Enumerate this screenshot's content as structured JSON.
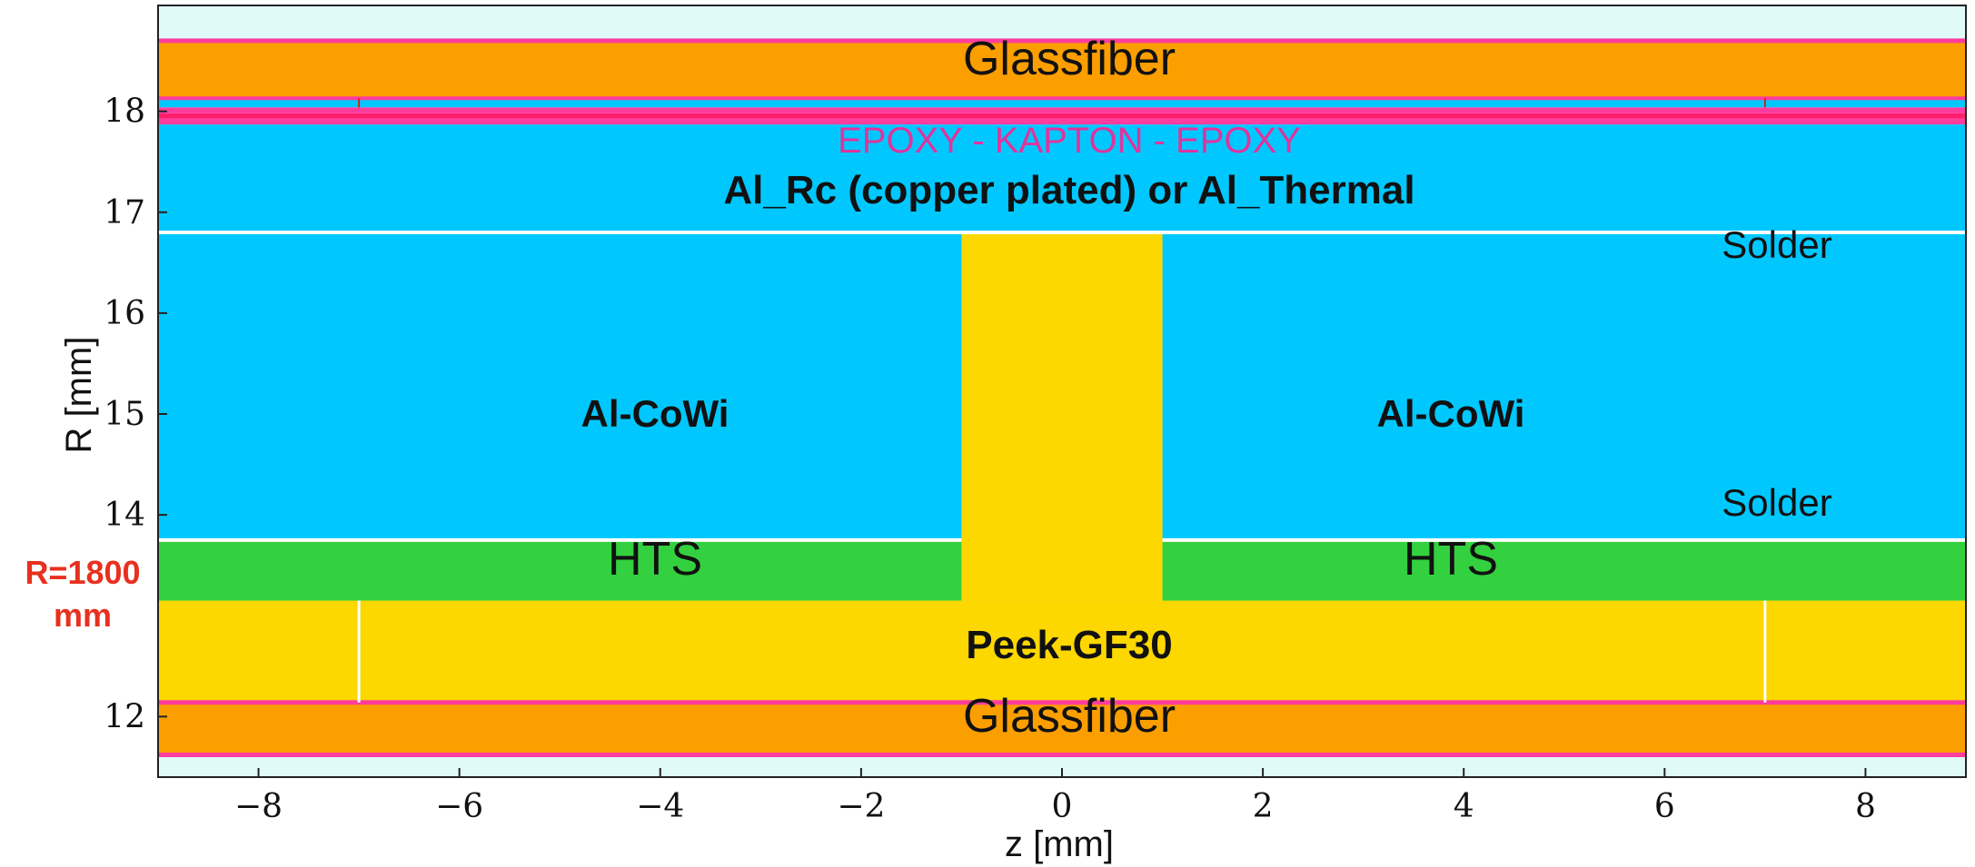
{
  "axes": {
    "xlabel": "z [mm]",
    "ylabel": "R [mm]",
    "xlim": [
      -9,
      9
    ],
    "ylim": [
      11.4,
      19.05
    ],
    "xticks": [
      "−8",
      "−6",
      "−4",
      "−2",
      "0",
      "2",
      "4",
      "6",
      "8"
    ],
    "xtick_values": [
      -8,
      -6,
      -4,
      -2,
      0,
      2,
      4,
      6,
      8
    ],
    "yticks": [
      "12",
      "14",
      "15",
      "16",
      "17",
      "18"
    ],
    "ytick_values": [
      12,
      14,
      15,
      16,
      17,
      18
    ]
  },
  "side_note": {
    "line1": "R=1800",
    "line2": "mm",
    "color": "#e8301f"
  },
  "colors": {
    "background": "#e0fafa",
    "glassfiber": "#fb9e00",
    "aluminium": "#00c8ff",
    "hts": "#33d13f",
    "peek": "#fcd700",
    "epoxy": "#ff3d9e",
    "kapton": "#ff1f6b",
    "solder": "#ffffff",
    "label_magenta": "#e0349c"
  },
  "regions": [
    {
      "name": "glassfiber-bottom",
      "material": "glassfiber",
      "z": [
        -9,
        9
      ],
      "r": [
        11.62,
        12.14
      ]
    },
    {
      "name": "peek-base",
      "material": "peek",
      "z": [
        -9,
        9
      ],
      "r": [
        12.14,
        13.15
      ]
    },
    {
      "name": "peek-center",
      "material": "peek",
      "z": [
        -1,
        1
      ],
      "r": [
        13.15,
        16.8
      ]
    },
    {
      "name": "hts-left",
      "material": "hts",
      "z": [
        -9,
        -1
      ],
      "r": [
        13.15,
        13.75
      ]
    },
    {
      "name": "hts-right",
      "material": "hts",
      "z": [
        1,
        9
      ],
      "r": [
        13.15,
        13.75
      ]
    },
    {
      "name": "alcowi-left",
      "material": "aluminium",
      "z": [
        -9,
        -1
      ],
      "r": [
        13.75,
        16.8
      ]
    },
    {
      "name": "alcowi-right",
      "material": "aluminium",
      "z": [
        1,
        9
      ],
      "r": [
        13.75,
        16.8
      ]
    },
    {
      "name": "al-rc",
      "material": "aluminium",
      "z": [
        -9,
        9
      ],
      "r": [
        16.8,
        17.87
      ]
    },
    {
      "name": "epoxy-inner",
      "material": "epoxy",
      "z": [
        -9,
        9
      ],
      "r": [
        17.87,
        17.93
      ]
    },
    {
      "name": "kapton",
      "material": "kapton",
      "z": [
        -9,
        9
      ],
      "r": [
        17.93,
        17.98
      ]
    },
    {
      "name": "epoxy-outer",
      "material": "epoxy",
      "z": [
        -9,
        9
      ],
      "r": [
        17.98,
        18.04
      ]
    },
    {
      "name": "top-thin-al",
      "material": "aluminium",
      "z": [
        -9,
        9
      ],
      "r": [
        18.04,
        18.13
      ]
    },
    {
      "name": "glassfiber-top",
      "material": "glassfiber",
      "z": [
        -9,
        9
      ],
      "r": [
        18.13,
        18.7
      ]
    }
  ],
  "labels": {
    "glassfiber_top": "Glassfiber",
    "glassfiber_bottom": "Glassfiber",
    "epoxy_kapton": "EPOXY - KAPTON - EPOXY",
    "al_rc": "Al_Rc (copper plated) or Al_Thermal",
    "solder_top": "Solder",
    "solder_bottom": "Solder",
    "alcowi_left": "Al-CoWi",
    "alcowi_right": "Al-CoWi",
    "hts_left": "HTS",
    "hts_right": "HTS",
    "peek": "Peek-GF30"
  }
}
